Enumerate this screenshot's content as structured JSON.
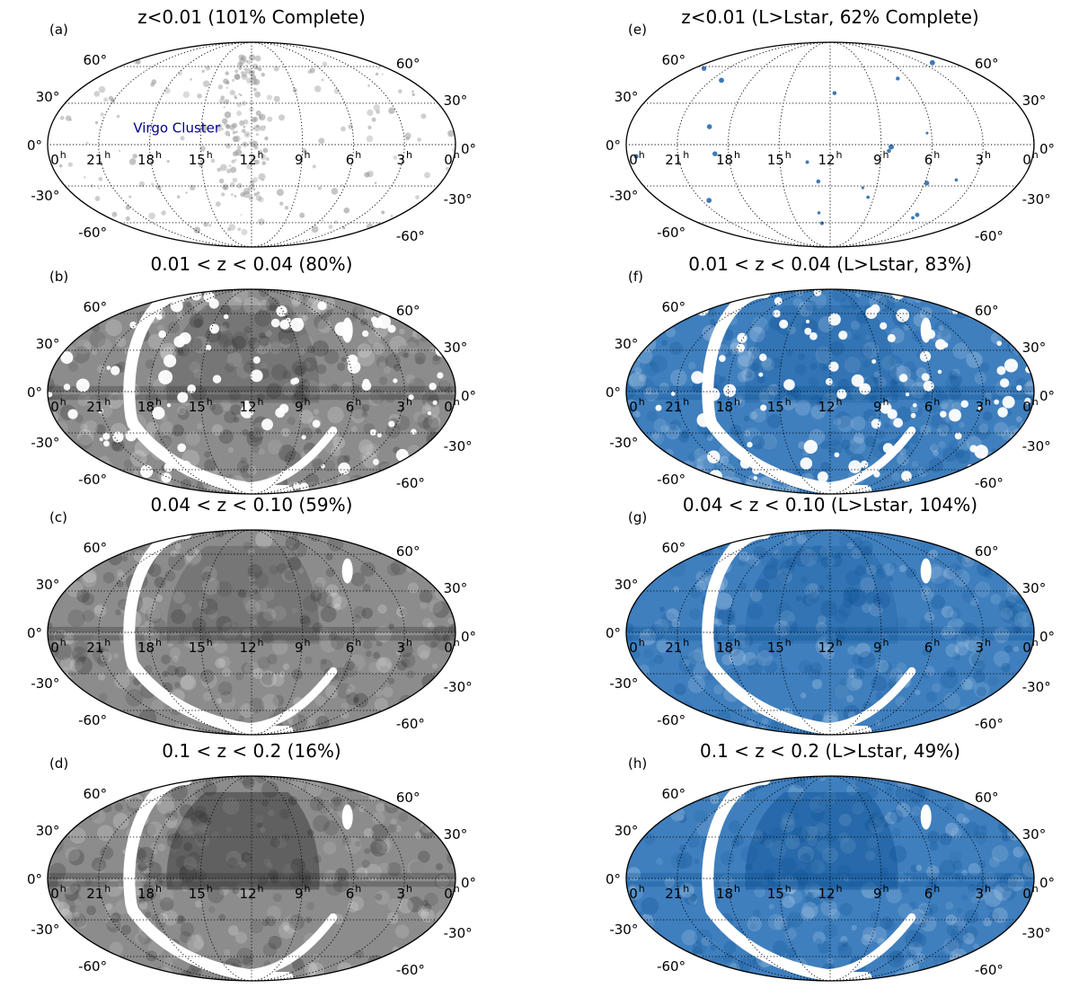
{
  "grid": {
    "ra_labels": [
      "0",
      "21",
      "18",
      "15",
      "12",
      "9",
      "6",
      "3",
      "0"
    ],
    "ra_unit": "h",
    "dec_labels": [
      "60°",
      "30°",
      "0°",
      "-30°",
      "-60°"
    ]
  },
  "colors": {
    "greyscale_dark": "#2b2b2b",
    "greyscale_light": "#e6e6e6",
    "blue_dark": "#0b4f92",
    "blue_light": "#c9ddf0",
    "annotation": "#00008b"
  },
  "panels": [
    {
      "id": "a",
      "letter": "(a)",
      "title": "z<0.01 (101% Complete)",
      "colormap": "greyscale",
      "pattern": "sparse",
      "annotation": "Virgo Cluster"
    },
    {
      "id": "b",
      "letter": "(b)",
      "title": "0.01 < z < 0.04 (80%)",
      "colormap": "greyscale",
      "pattern": "medium"
    },
    {
      "id": "c",
      "letter": "(c)",
      "title": "0.04 < z < 0.10 (59%)",
      "colormap": "greyscale",
      "pattern": "dense"
    },
    {
      "id": "d",
      "letter": "(d)",
      "title": "0.1 < z < 0.2 (16%)",
      "colormap": "greyscale",
      "pattern": "deep"
    },
    {
      "id": "e",
      "letter": "(e)",
      "title": "z<0.01 (L>Lstar, 62% Complete)",
      "colormap": "blues",
      "pattern": "very-sparse"
    },
    {
      "id": "f",
      "letter": "(f)",
      "title": "0.01 < z < 0.04 (L>Lstar, 83%)",
      "colormap": "blues",
      "pattern": "medium"
    },
    {
      "id": "g",
      "letter": "(g)",
      "title": "0.04 < z < 0.10 (L>Lstar, 104%)",
      "colormap": "blues",
      "pattern": "dense"
    },
    {
      "id": "h",
      "letter": "(h)",
      "title": "0.1 < z < 0.2 (L>Lstar, 49%)",
      "colormap": "blues",
      "pattern": "deep"
    }
  ]
}
